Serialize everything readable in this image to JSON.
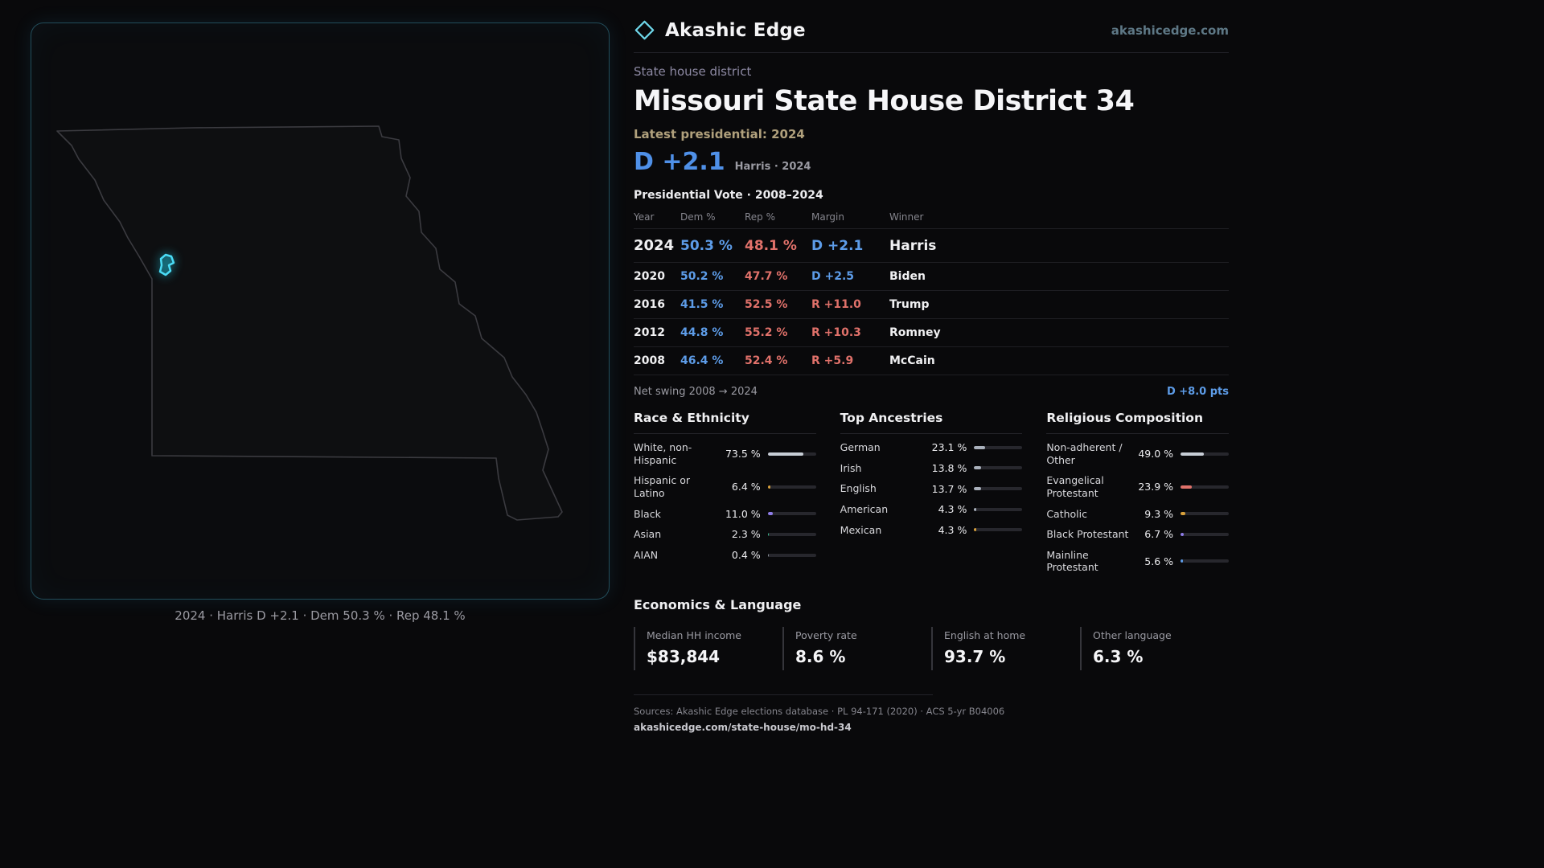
{
  "brand": {
    "name": "Akashic Edge",
    "domain": "akashicedge.com"
  },
  "page": {
    "kicker": "State house district",
    "title": "Missouri State House District 34",
    "latest_label": "Latest presidential: 2024",
    "headline_margin": "D +2.1",
    "headline_context": "Harris · 2024"
  },
  "map": {
    "caption": "2024 · Harris D +2.1 · Dem 50.3 % · Rep 48.1 %"
  },
  "vote": {
    "title": "Presidential Vote · 2008–2024",
    "columns": [
      "Year",
      "Dem %",
      "Rep %",
      "Margin",
      "Winner"
    ],
    "rows": [
      {
        "year": "2024",
        "dem": "50.3 %",
        "rep": "48.1 %",
        "margin": "D +2.1",
        "winner": "Harris",
        "party": "D"
      },
      {
        "year": "2020",
        "dem": "50.2 %",
        "rep": "47.7 %",
        "margin": "D +2.5",
        "winner": "Biden",
        "party": "D"
      },
      {
        "year": "2016",
        "dem": "41.5 %",
        "rep": "52.5 %",
        "margin": "R +11.0",
        "winner": "Trump",
        "party": "R"
      },
      {
        "year": "2012",
        "dem": "44.8 %",
        "rep": "55.2 %",
        "margin": "R +10.3",
        "winner": "Romney",
        "party": "R"
      },
      {
        "year": "2008",
        "dem": "46.4 %",
        "rep": "52.4 %",
        "margin": "R +5.9",
        "winner": "McCain",
        "party": "R"
      }
    ]
  },
  "net_swing": {
    "label": "Net swing 2008 → 2024",
    "value": "D +8.0 pts"
  },
  "demographics": [
    {
      "title": "Race & Ethnicity",
      "rows": [
        {
          "label": "White, non-Hispanic",
          "value": "73.5 %",
          "pct": 73.5,
          "color": "#c7cdd6"
        },
        {
          "label": "Hispanic or Latino",
          "value": "6.4 %",
          "pct": 6.4,
          "color": "#d9a13b"
        },
        {
          "label": "Black",
          "value": "11.0 %",
          "pct": 11.0,
          "color": "#8e7ce8"
        },
        {
          "label": "Asian",
          "value": "2.3 %",
          "pct": 2.3,
          "color": "#37b98c"
        },
        {
          "label": "AIAN",
          "value": "0.4 %",
          "pct": 0.4,
          "color": "#8a8f98"
        }
      ]
    },
    {
      "title": "Top Ancestries",
      "rows": [
        {
          "label": "German",
          "value": "23.1 %",
          "pct": 23.1,
          "color": "#aab1bc"
        },
        {
          "label": "Irish",
          "value": "13.8 %",
          "pct": 13.8,
          "color": "#aab1bc"
        },
        {
          "label": "English",
          "value": "13.7 %",
          "pct": 13.7,
          "color": "#aab1bc"
        },
        {
          "label": "American",
          "value": "4.3 %",
          "pct": 4.3,
          "color": "#aab1bc"
        },
        {
          "label": "Mexican",
          "value": "4.3 %",
          "pct": 4.3,
          "color": "#d9a13b"
        }
      ]
    },
    {
      "title": "Religious Composition",
      "rows": [
        {
          "label": "Non-adherent / Other",
          "value": "49.0 %",
          "pct": 49.0,
          "color": "#c7cdd6"
        },
        {
          "label": "Evangelical Protestant",
          "value": "23.9 %",
          "pct": 23.9,
          "color": "#e0716a"
        },
        {
          "label": "Catholic",
          "value": "9.3 %",
          "pct": 9.3,
          "color": "#d9a13b"
        },
        {
          "label": "Black Protestant",
          "value": "6.7 %",
          "pct": 6.7,
          "color": "#8e7ce8"
        },
        {
          "label": "Mainline Protestant",
          "value": "5.6 %",
          "pct": 5.6,
          "color": "#5d9ce8"
        }
      ]
    }
  ],
  "economics": {
    "title": "Economics & Language",
    "stats": [
      {
        "label": "Median HH income",
        "value": "$83,844"
      },
      {
        "label": "Poverty rate",
        "value": "8.6 %"
      },
      {
        "label": "English at home",
        "value": "93.7 %"
      },
      {
        "label": "Other language",
        "value": "6.3 %"
      }
    ]
  },
  "footer": {
    "sources": "Sources: Akashic Edge elections database · PL 94-171 (2020) · ACS 5-yr B04006",
    "permalink": "akashicedge.com/state-house/mo-hd-34"
  },
  "colors": {
    "dem": "#5d9ce8",
    "rep": "#e0716a",
    "accent": "#3fd0ea"
  }
}
